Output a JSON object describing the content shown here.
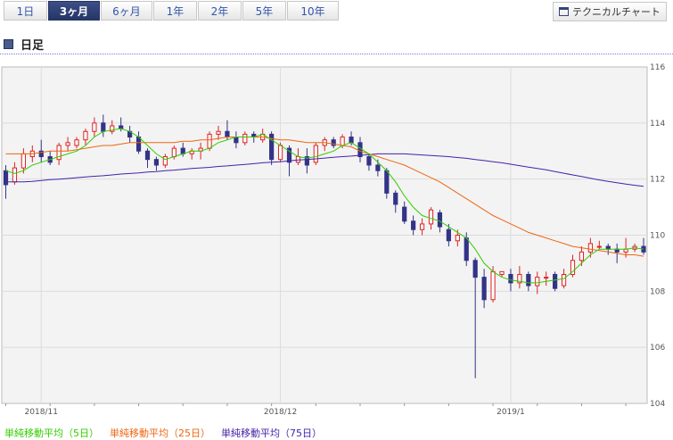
{
  "tabs": [
    {
      "label": "1日",
      "active": false
    },
    {
      "label": "3ヶ月",
      "active": true
    },
    {
      "label": "6ヶ月",
      "active": false
    },
    {
      "label": "1年",
      "active": false
    },
    {
      "label": "2年",
      "active": false
    },
    {
      "label": "5年",
      "active": false
    },
    {
      "label": "10年",
      "active": false
    }
  ],
  "technical_button": {
    "label": "テクニカルチャート"
  },
  "section": {
    "title": "日足"
  },
  "legend": [
    {
      "label": "単純移動平均（5日）",
      "color": "#33cc00"
    },
    {
      "label": "単純移動平均（25日）",
      "color": "#ee6611"
    },
    {
      "label": "単純移動平均（75日）",
      "color": "#4422aa"
    }
  ],
  "chart_data": {
    "type": "candlestick",
    "y_ticks": [
      104,
      106,
      108,
      110,
      112,
      114,
      116
    ],
    "ylim": [
      104,
      116
    ],
    "x_tick_labels": [
      {
        "label": "2018/11",
        "index": 4
      },
      {
        "label": "2018/12",
        "index": 31
      },
      {
        "label": "2019/1",
        "index": 57
      }
    ],
    "colors": {
      "up": "#dd2222",
      "down": "#333388",
      "sma5": "#33cc00",
      "sma25": "#ee6611",
      "sma75": "#4422aa"
    },
    "candles": [
      [
        112.3,
        112.5,
        111.3,
        111.8
      ],
      [
        111.9,
        112.6,
        111.8,
        112.4
      ],
      [
        112.4,
        113.1,
        112.2,
        112.9
      ],
      [
        112.8,
        113.2,
        112.6,
        113.0
      ],
      [
        113.0,
        113.4,
        112.6,
        112.8
      ],
      [
        112.8,
        113.0,
        112.5,
        112.6
      ],
      [
        112.7,
        113.3,
        112.5,
        113.2
      ],
      [
        113.2,
        113.5,
        113.0,
        113.3
      ],
      [
        113.2,
        113.5,
        113.1,
        113.4
      ],
      [
        113.4,
        113.8,
        113.2,
        113.7
      ],
      [
        113.7,
        114.2,
        113.5,
        114.0
      ],
      [
        114.0,
        114.3,
        113.5,
        113.7
      ],
      [
        113.7,
        114.1,
        113.6,
        113.9
      ],
      [
        113.9,
        114.2,
        113.7,
        113.8
      ],
      [
        113.7,
        113.9,
        113.3,
        113.5
      ],
      [
        113.5,
        113.7,
        112.9,
        113.0
      ],
      [
        113.0,
        113.1,
        112.4,
        112.7
      ],
      [
        112.7,
        112.8,
        112.3,
        112.5
      ],
      [
        112.5,
        112.9,
        112.4,
        112.8
      ],
      [
        112.8,
        113.2,
        112.7,
        113.1
      ],
      [
        113.1,
        113.3,
        112.8,
        112.9
      ],
      [
        112.9,
        113.1,
        112.7,
        113.0
      ],
      [
        113.0,
        113.3,
        112.7,
        113.1
      ],
      [
        113.1,
        113.7,
        113.0,
        113.6
      ],
      [
        113.6,
        113.9,
        113.4,
        113.7
      ],
      [
        113.7,
        114.1,
        113.4,
        113.5
      ],
      [
        113.5,
        113.7,
        113.1,
        113.3
      ],
      [
        113.3,
        113.7,
        113.2,
        113.6
      ],
      [
        113.6,
        113.7,
        113.3,
        113.5
      ],
      [
        113.4,
        113.8,
        113.3,
        113.6
      ],
      [
        113.6,
        113.7,
        112.5,
        112.7
      ],
      [
        112.7,
        113.3,
        112.6,
        113.2
      ],
      [
        113.1,
        113.2,
        112.1,
        112.6
      ],
      [
        112.6,
        113.1,
        112.5,
        112.8
      ],
      [
        112.8,
        113.1,
        112.2,
        112.5
      ],
      [
        112.6,
        113.3,
        112.5,
        113.2
      ],
      [
        113.2,
        113.5,
        113.0,
        113.4
      ],
      [
        113.4,
        113.5,
        113.1,
        113.2
      ],
      [
        113.2,
        113.6,
        113.1,
        113.5
      ],
      [
        113.5,
        113.7,
        113.2,
        113.3
      ],
      [
        113.3,
        113.5,
        112.6,
        112.8
      ],
      [
        112.8,
        112.9,
        112.3,
        112.5
      ],
      [
        112.5,
        112.7,
        112.1,
        112.3
      ],
      [
        112.3,
        112.4,
        111.3,
        111.5
      ],
      [
        111.5,
        111.6,
        110.8,
        111.1
      ],
      [
        111.0,
        111.2,
        110.4,
        110.5
      ],
      [
        110.5,
        110.7,
        110.0,
        110.2
      ],
      [
        110.2,
        110.6,
        110.0,
        110.4
      ],
      [
        110.4,
        111.0,
        110.2,
        110.9
      ],
      [
        110.8,
        110.9,
        110.1,
        110.3
      ],
      [
        110.2,
        110.4,
        109.6,
        109.8
      ],
      [
        109.8,
        110.2,
        109.6,
        110.0
      ],
      [
        109.9,
        110.1,
        108.9,
        109.1
      ],
      [
        109.1,
        109.2,
        104.9,
        108.5
      ],
      [
        108.5,
        108.8,
        107.4,
        107.7
      ],
      [
        107.7,
        108.9,
        107.6,
        108.7
      ],
      [
        108.6,
        108.7,
        108.5,
        108.7
      ],
      [
        108.6,
        108.8,
        108.0,
        108.3
      ],
      [
        108.3,
        108.9,
        108.1,
        108.6
      ],
      [
        108.6,
        108.7,
        108.0,
        108.2
      ],
      [
        108.2,
        108.7,
        107.9,
        108.5
      ],
      [
        108.5,
        108.7,
        108.2,
        108.5
      ],
      [
        108.6,
        108.7,
        108.0,
        108.1
      ],
      [
        108.2,
        108.8,
        108.1,
        108.6
      ],
      [
        108.6,
        109.3,
        108.5,
        109.1
      ],
      [
        109.1,
        109.6,
        108.9,
        109.4
      ],
      [
        109.4,
        109.9,
        109.2,
        109.7
      ],
      [
        109.6,
        109.8,
        109.5,
        109.6
      ],
      [
        109.6,
        109.7,
        109.3,
        109.5
      ],
      [
        109.5,
        109.7,
        109.0,
        109.4
      ],
      [
        109.4,
        109.9,
        109.2,
        109.5
      ],
      [
        109.5,
        109.7,
        109.4,
        109.6
      ],
      [
        109.6,
        109.9,
        109.3,
        109.4
      ]
    ],
    "sma5": [
      112.3,
      112.2,
      112.3,
      112.5,
      112.6,
      112.7,
      112.8,
      112.9,
      113.0,
      113.2,
      113.5,
      113.7,
      113.75,
      113.8,
      113.7,
      113.5,
      113.2,
      112.9,
      112.7,
      112.8,
      112.9,
      113.0,
      113.0,
      113.1,
      113.3,
      113.4,
      113.5,
      113.5,
      113.5,
      113.6,
      113.4,
      113.2,
      113.0,
      112.8,
      112.75,
      112.8,
      112.9,
      113.0,
      113.2,
      113.3,
      113.1,
      112.9,
      112.6,
      112.3,
      111.9,
      111.4,
      111.0,
      110.7,
      110.6,
      110.5,
      110.3,
      110.1,
      109.9,
      109.5,
      109.0,
      108.7,
      108.5,
      108.4,
      108.35,
      108.3,
      108.3,
      108.35,
      108.4,
      108.45,
      108.7,
      109.0,
      109.3,
      109.5,
      109.5,
      109.5,
      109.5,
      109.55,
      109.5
    ],
    "sma25": [
      112.9,
      112.9,
      112.9,
      112.9,
      112.95,
      113.0,
      113.0,
      113.0,
      113.05,
      113.1,
      113.15,
      113.2,
      113.2,
      113.25,
      113.3,
      113.3,
      113.3,
      113.3,
      113.3,
      113.3,
      113.35,
      113.35,
      113.4,
      113.4,
      113.45,
      113.5,
      113.5,
      113.5,
      113.5,
      113.5,
      113.45,
      113.4,
      113.4,
      113.35,
      113.3,
      113.3,
      113.3,
      113.25,
      113.2,
      113.15,
      113.0,
      112.9,
      112.8,
      112.7,
      112.6,
      112.5,
      112.35,
      112.2,
      112.05,
      111.9,
      111.7,
      111.5,
      111.3,
      111.1,
      110.9,
      110.7,
      110.55,
      110.4,
      110.25,
      110.1,
      110.0,
      109.9,
      109.8,
      109.7,
      109.6,
      109.55,
      109.5,
      109.45,
      109.4,
      109.35,
      109.3,
      109.3,
      109.25
    ],
    "sma75": [
      111.9,
      111.9,
      111.9,
      111.92,
      111.95,
      111.98,
      112.0,
      112.02,
      112.05,
      112.08,
      112.1,
      112.12,
      112.15,
      112.18,
      112.2,
      112.22,
      112.25,
      112.27,
      112.3,
      112.32,
      112.35,
      112.38,
      112.4,
      112.42,
      112.45,
      112.47,
      112.5,
      112.52,
      112.55,
      112.58,
      112.6,
      112.62,
      112.65,
      112.68,
      112.7,
      112.72,
      112.75,
      112.78,
      112.8,
      112.82,
      112.85,
      112.87,
      112.9,
      112.9,
      112.9,
      112.9,
      112.88,
      112.86,
      112.84,
      112.82,
      112.8,
      112.77,
      112.74,
      112.7,
      112.66,
      112.62,
      112.58,
      112.53,
      112.48,
      112.43,
      112.38,
      112.33,
      112.27,
      112.21,
      112.15,
      112.09,
      112.03,
      111.97,
      111.92,
      111.87,
      111.82,
      111.78,
      111.74
    ]
  }
}
